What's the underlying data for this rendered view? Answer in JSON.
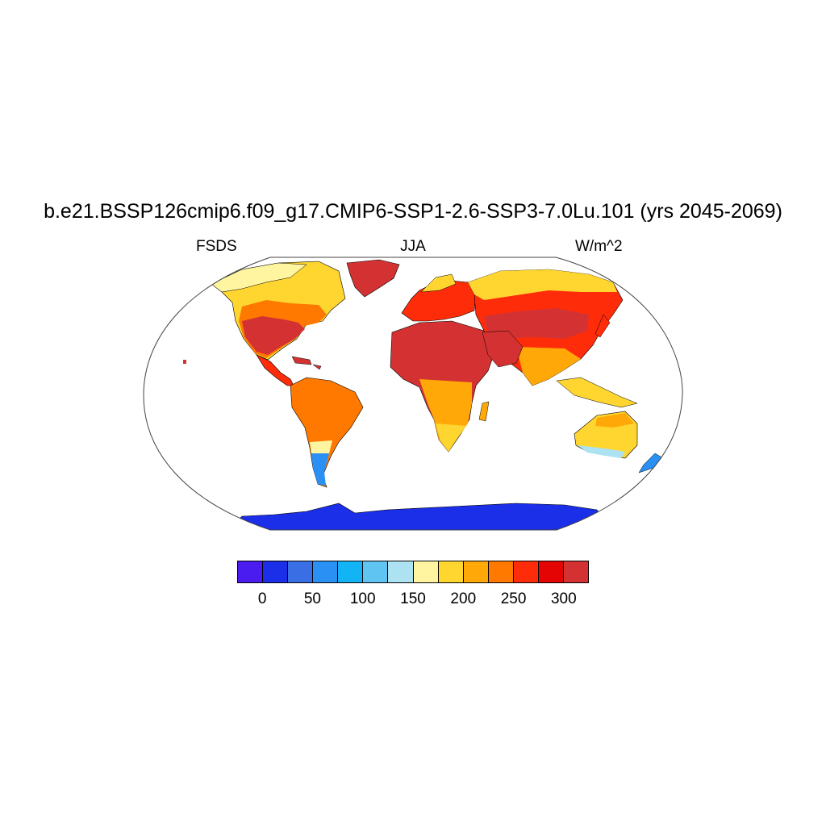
{
  "header": {
    "title": "b.e21.BSSP126cmip6.f09_g17.CMIP6-SSP1-2.6-SSP3-7.0Lu.101 (yrs 2045-2069)",
    "variable": "FSDS",
    "season": "JJA",
    "units": "W/m^2"
  },
  "colorbar": {
    "colors": [
      "#4a1cf0",
      "#1b2ee8",
      "#3a6ee4",
      "#2a90f4",
      "#12b4f6",
      "#60c4f2",
      "#ace2f2",
      "#fff5a0",
      "#ffd630",
      "#ffa808",
      "#ff7800",
      "#ff2c0a",
      "#e40404",
      "#d43232"
    ],
    "tick_labels": [
      "0",
      "50",
      "100",
      "150",
      "200",
      "250",
      "300"
    ]
  },
  "map_colors": {
    "coldest": "#1b2ee8",
    "cold": "#2a90f4",
    "cool": "#ace2f2",
    "mild": "#fff5a0",
    "warm": "#ffd630",
    "warmer": "#ffa808",
    "hot": "#ff7800",
    "hotter": "#ff2c0a",
    "hottest": "#d43232"
  }
}
